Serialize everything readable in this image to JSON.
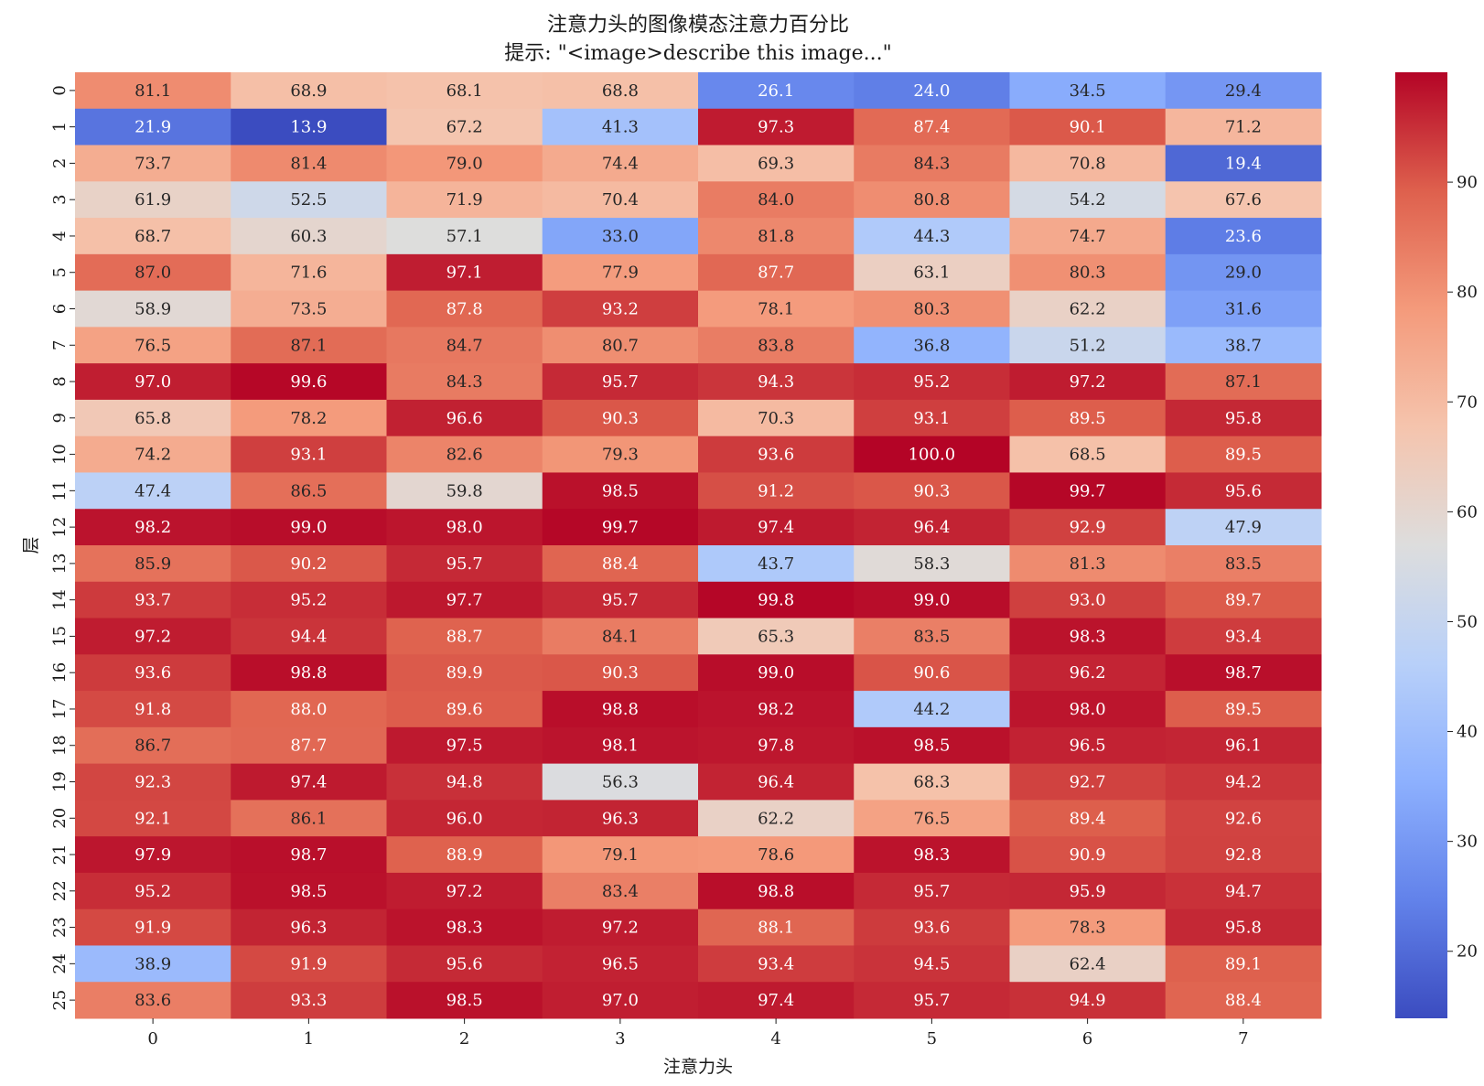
{
  "chart_data": {
    "type": "heatmap",
    "title": "注意力头的图像模态注意力百分比",
    "subtitle": "提示: \"<image>describe this image...\"",
    "xlabel": "注意力头",
    "ylabel": "层",
    "x_categories": [
      "0",
      "1",
      "2",
      "3",
      "4",
      "5",
      "6",
      "7"
    ],
    "y_categories": [
      "0",
      "1",
      "2",
      "3",
      "4",
      "5",
      "6",
      "7",
      "8",
      "9",
      "10",
      "11",
      "12",
      "13",
      "14",
      "15",
      "16",
      "17",
      "18",
      "19",
      "20",
      "21",
      "22",
      "23",
      "24",
      "25"
    ],
    "values": [
      [
        81.1,
        68.9,
        68.1,
        68.8,
        26.1,
        24.0,
        34.5,
        29.4
      ],
      [
        21.9,
        13.9,
        67.2,
        41.3,
        97.3,
        87.4,
        90.1,
        71.2
      ],
      [
        73.7,
        81.4,
        79.0,
        74.4,
        69.3,
        84.3,
        70.8,
        19.4
      ],
      [
        61.9,
        52.5,
        71.9,
        70.4,
        84.0,
        80.8,
        54.2,
        67.6
      ],
      [
        68.7,
        60.3,
        57.1,
        33.0,
        81.8,
        44.3,
        74.7,
        23.6
      ],
      [
        87.0,
        71.6,
        97.1,
        77.9,
        87.7,
        63.1,
        80.3,
        29.0
      ],
      [
        58.9,
        73.5,
        87.8,
        93.2,
        78.1,
        80.3,
        62.2,
        31.6
      ],
      [
        76.5,
        87.1,
        84.7,
        80.7,
        83.8,
        36.8,
        51.2,
        38.7
      ],
      [
        97.0,
        99.6,
        84.3,
        95.7,
        94.3,
        95.2,
        97.2,
        87.1
      ],
      [
        65.8,
        78.2,
        96.6,
        90.3,
        70.3,
        93.1,
        89.5,
        95.8
      ],
      [
        74.2,
        93.1,
        82.6,
        79.3,
        93.6,
        100.0,
        68.5,
        89.5
      ],
      [
        47.4,
        86.5,
        59.8,
        98.5,
        91.2,
        90.3,
        99.7,
        95.6
      ],
      [
        98.2,
        99.0,
        98.0,
        99.7,
        97.4,
        96.4,
        92.9,
        47.9
      ],
      [
        85.9,
        90.2,
        95.7,
        88.4,
        43.7,
        58.3,
        81.3,
        83.5
      ],
      [
        93.7,
        95.2,
        97.7,
        95.7,
        99.8,
        99.0,
        93.0,
        89.7
      ],
      [
        97.2,
        94.4,
        88.7,
        84.1,
        65.3,
        83.5,
        98.3,
        93.4
      ],
      [
        93.6,
        98.8,
        89.9,
        90.3,
        99.0,
        90.6,
        96.2,
        98.7
      ],
      [
        91.8,
        88.0,
        89.6,
        98.8,
        98.2,
        44.2,
        98.0,
        89.5
      ],
      [
        86.7,
        87.7,
        97.5,
        98.1,
        97.8,
        98.5,
        96.5,
        96.1
      ],
      [
        92.3,
        97.4,
        94.8,
        56.3,
        96.4,
        68.3,
        92.7,
        94.2
      ],
      [
        92.1,
        86.1,
        96.0,
        96.3,
        62.2,
        76.5,
        89.4,
        92.6
      ],
      [
        97.9,
        98.7,
        88.9,
        79.1,
        78.6,
        98.3,
        90.9,
        92.8
      ],
      [
        95.2,
        98.5,
        97.2,
        83.4,
        98.8,
        95.7,
        95.9,
        94.7
      ],
      [
        91.9,
        96.3,
        98.3,
        97.2,
        88.1,
        93.6,
        78.3,
        95.8
      ],
      [
        38.9,
        91.9,
        95.6,
        96.5,
        93.4,
        94.5,
        62.4,
        89.1
      ],
      [
        83.6,
        93.3,
        98.5,
        97.0,
        97.4,
        95.7,
        94.9,
        88.4
      ]
    ],
    "value_format": "0.1f",
    "colormap": "coolwarm",
    "color_range": [
      13.9,
      100.0
    ],
    "colorbar": {
      "ticks": [
        20,
        30,
        40,
        50,
        60,
        70,
        80,
        90
      ]
    },
    "grid": false
  }
}
